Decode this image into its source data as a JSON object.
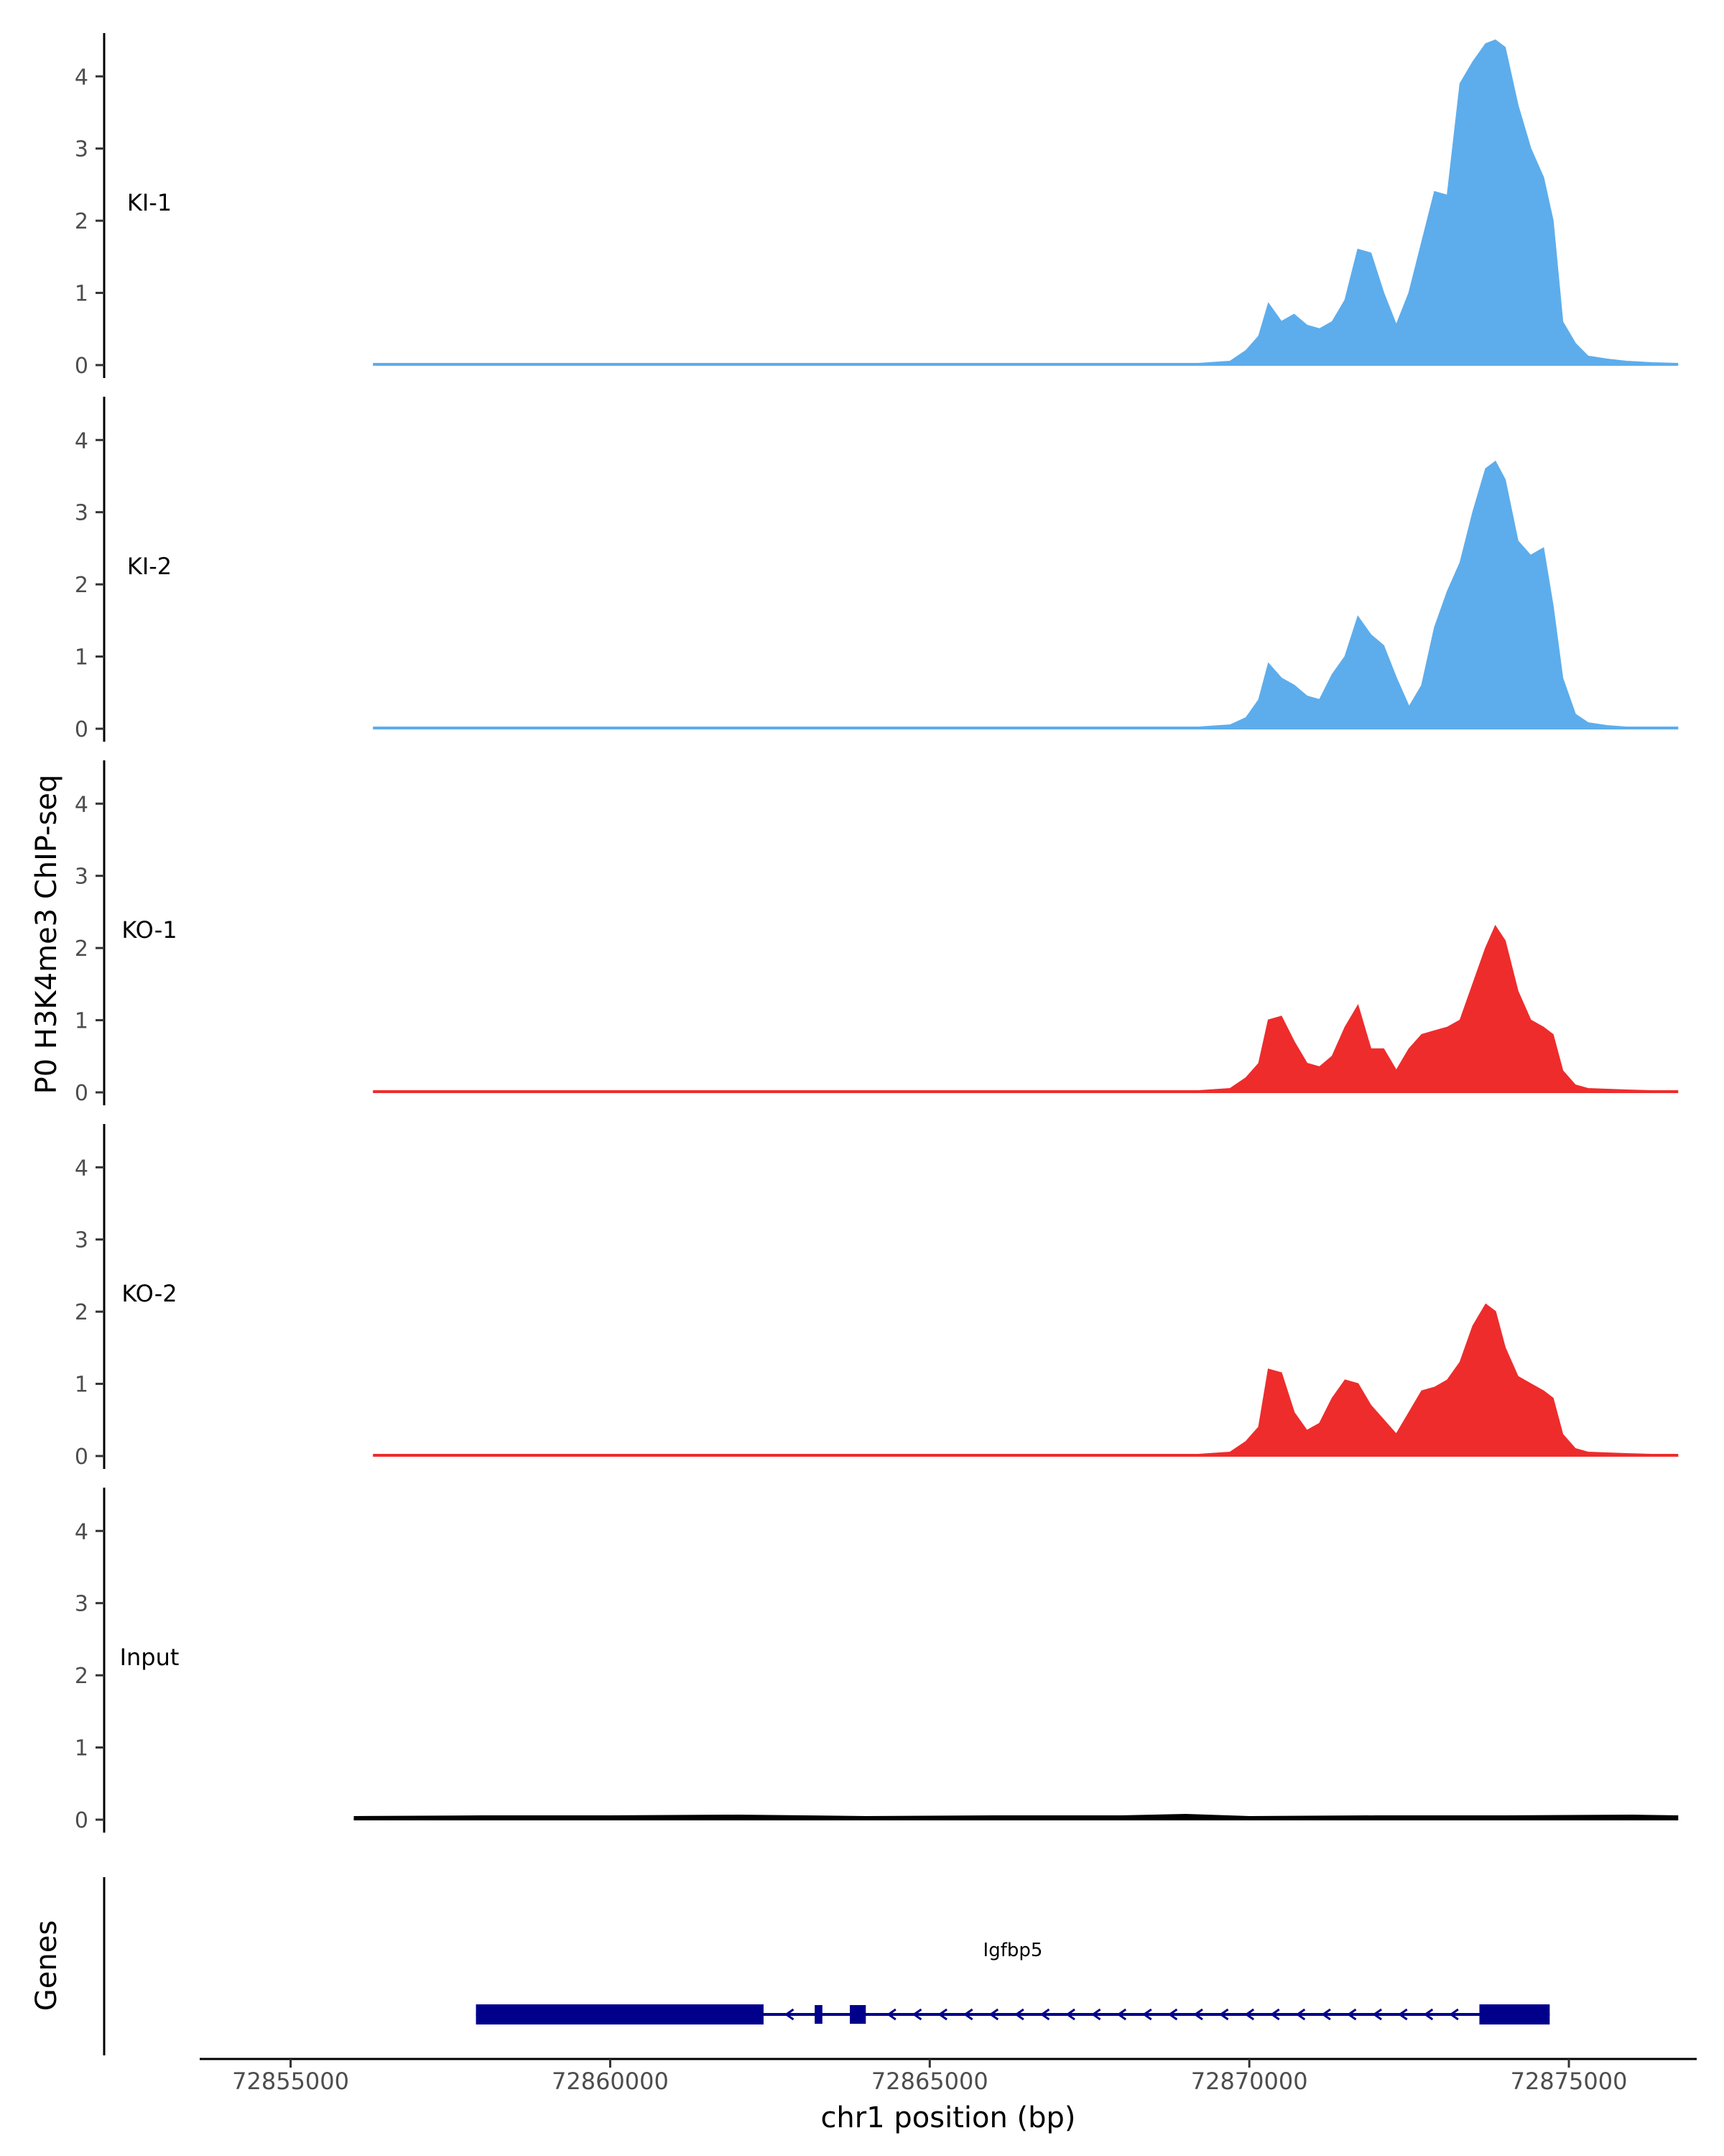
{
  "chart_data": {
    "type": "area",
    "ylabel": "P0 H3K4me3 ChIP-seq",
    "xlabel": "chr1 position (bp)",
    "gene_panel_label": "Genes",
    "xlim": [
      72853600,
      72877000
    ],
    "ylim": [
      0,
      4.6
    ],
    "y_ticks": [
      0,
      1,
      2,
      3,
      4
    ],
    "x_ticks": [
      72855000,
      72860000,
      72865000,
      72870000,
      72875000
    ],
    "x_tick_labels": [
      "72855000",
      "72860000",
      "72865000",
      "72870000",
      "72875000"
    ],
    "colors": {
      "KI": "#5DADEC",
      "KO": "#EE2C2C",
      "Input": "#000000",
      "gene": "#00008B"
    },
    "tracks": [
      {
        "name": "KI-1",
        "color": "#5DADEC",
        "x": [
          72856300,
          72860000,
          72866000,
          72868500,
          72869200,
          72869700,
          72869950,
          72870150,
          72870300,
          72870500,
          72870700,
          72870900,
          72871100,
          72871300,
          72871500,
          72871700,
          72871900,
          72872100,
          72872300,
          72872500,
          72872700,
          72872900,
          72873100,
          72873300,
          72873500,
          72873700,
          72873850,
          72874000,
          72874200,
          72874400,
          72874600,
          72874750,
          72874900,
          72875100,
          72875300,
          72875600,
          72875900,
          72876300,
          72876700
        ],
        "y": [
          0.02,
          0.02,
          0.02,
          0.02,
          0.02,
          0.05,
          0.2,
          0.4,
          0.85,
          0.6,
          0.7,
          0.55,
          0.5,
          0.6,
          0.9,
          1.6,
          1.55,
          1.0,
          0.55,
          1.0,
          1.7,
          2.4,
          2.35,
          3.9,
          4.2,
          4.45,
          4.5,
          4.4,
          3.6,
          3.0,
          2.6,
          2.0,
          0.6,
          0.3,
          0.12,
          0.08,
          0.05,
          0.03,
          0.02
        ]
      },
      {
        "name": "KI-2",
        "color": "#5DADEC",
        "x": [
          72856300,
          72860000,
          72866000,
          72868500,
          72869200,
          72869700,
          72869950,
          72870150,
          72870300,
          72870500,
          72870700,
          72870900,
          72871100,
          72871300,
          72871500,
          72871700,
          72871900,
          72872100,
          72872300,
          72872500,
          72872700,
          72872900,
          72873100,
          72873300,
          72873500,
          72873700,
          72873850,
          72874000,
          72874200,
          72874400,
          72874600,
          72874750,
          72874900,
          72875100,
          72875300,
          72875600,
          72875900,
          72876300,
          72876700
        ],
        "y": [
          0.02,
          0.02,
          0.02,
          0.02,
          0.02,
          0.05,
          0.15,
          0.4,
          0.9,
          0.7,
          0.6,
          0.45,
          0.4,
          0.75,
          1.0,
          1.55,
          1.3,
          1.15,
          0.7,
          0.3,
          0.6,
          1.4,
          1.9,
          2.3,
          3.0,
          3.6,
          3.7,
          3.45,
          2.6,
          2.4,
          2.5,
          1.7,
          0.7,
          0.2,
          0.08,
          0.04,
          0.02,
          0.02,
          0.02
        ]
      },
      {
        "name": "KO-1",
        "color": "#EE2C2C",
        "x": [
          72856300,
          72860000,
          72866000,
          72868500,
          72869200,
          72869700,
          72869950,
          72870150,
          72870300,
          72870500,
          72870700,
          72870900,
          72871100,
          72871300,
          72871500,
          72871700,
          72871900,
          72872100,
          72872300,
          72872500,
          72872700,
          72872900,
          72873100,
          72873300,
          72873500,
          72873700,
          72873850,
          72874000,
          72874200,
          72874400,
          72874600,
          72874750,
          72874900,
          72875100,
          72875300,
          72875600,
          72875900,
          72876300,
          72876700
        ],
        "y": [
          0.02,
          0.02,
          0.02,
          0.02,
          0.02,
          0.05,
          0.2,
          0.4,
          1.0,
          1.05,
          0.7,
          0.4,
          0.35,
          0.5,
          0.9,
          1.2,
          0.6,
          0.6,
          0.3,
          0.6,
          0.8,
          0.85,
          0.9,
          1.0,
          1.5,
          2.0,
          2.3,
          2.1,
          1.4,
          1.0,
          0.9,
          0.8,
          0.3,
          0.1,
          0.05,
          0.04,
          0.03,
          0.02,
          0.02
        ]
      },
      {
        "name": "KO-2",
        "color": "#EE2C2C",
        "x": [
          72856300,
          72860000,
          72866000,
          72868500,
          72869200,
          72869700,
          72869950,
          72870150,
          72870300,
          72870500,
          72870700,
          72870900,
          72871100,
          72871300,
          72871500,
          72871700,
          72871900,
          72872100,
          72872300,
          72872500,
          72872700,
          72872900,
          72873100,
          72873300,
          72873500,
          72873700,
          72873850,
          72874000,
          72874200,
          72874400,
          72874600,
          72874750,
          72874900,
          72875100,
          72875300,
          72875600,
          72875900,
          72876300,
          72876700
        ],
        "y": [
          0.02,
          0.02,
          0.02,
          0.02,
          0.02,
          0.05,
          0.2,
          0.4,
          1.2,
          1.15,
          0.6,
          0.35,
          0.45,
          0.8,
          1.05,
          1.0,
          0.7,
          0.5,
          0.3,
          0.6,
          0.9,
          0.95,
          1.05,
          1.3,
          1.8,
          2.1,
          2.0,
          1.5,
          1.1,
          1.0,
          0.9,
          0.8,
          0.3,
          0.1,
          0.05,
          0.04,
          0.03,
          0.02,
          0.02
        ]
      },
      {
        "name": "Input",
        "color": "#000000",
        "x": [
          72856000,
          72858000,
          72860000,
          72862000,
          72864000,
          72866000,
          72868000,
          72869000,
          72870000,
          72872000,
          72874000,
          72876000,
          72876700
        ],
        "y": [
          0.04,
          0.05,
          0.05,
          0.06,
          0.04,
          0.05,
          0.05,
          0.07,
          0.04,
          0.05,
          0.05,
          0.06,
          0.05
        ]
      }
    ],
    "gene": {
      "name": "Igfbp5",
      "strand": "-",
      "intron": [
        72857900,
        72874700
      ],
      "exons": [
        [
          72857900,
          72862400
        ],
        [
          72863200,
          72863320
        ],
        [
          72863750,
          72864000
        ],
        [
          72873600,
          72874700
        ]
      ]
    }
  }
}
